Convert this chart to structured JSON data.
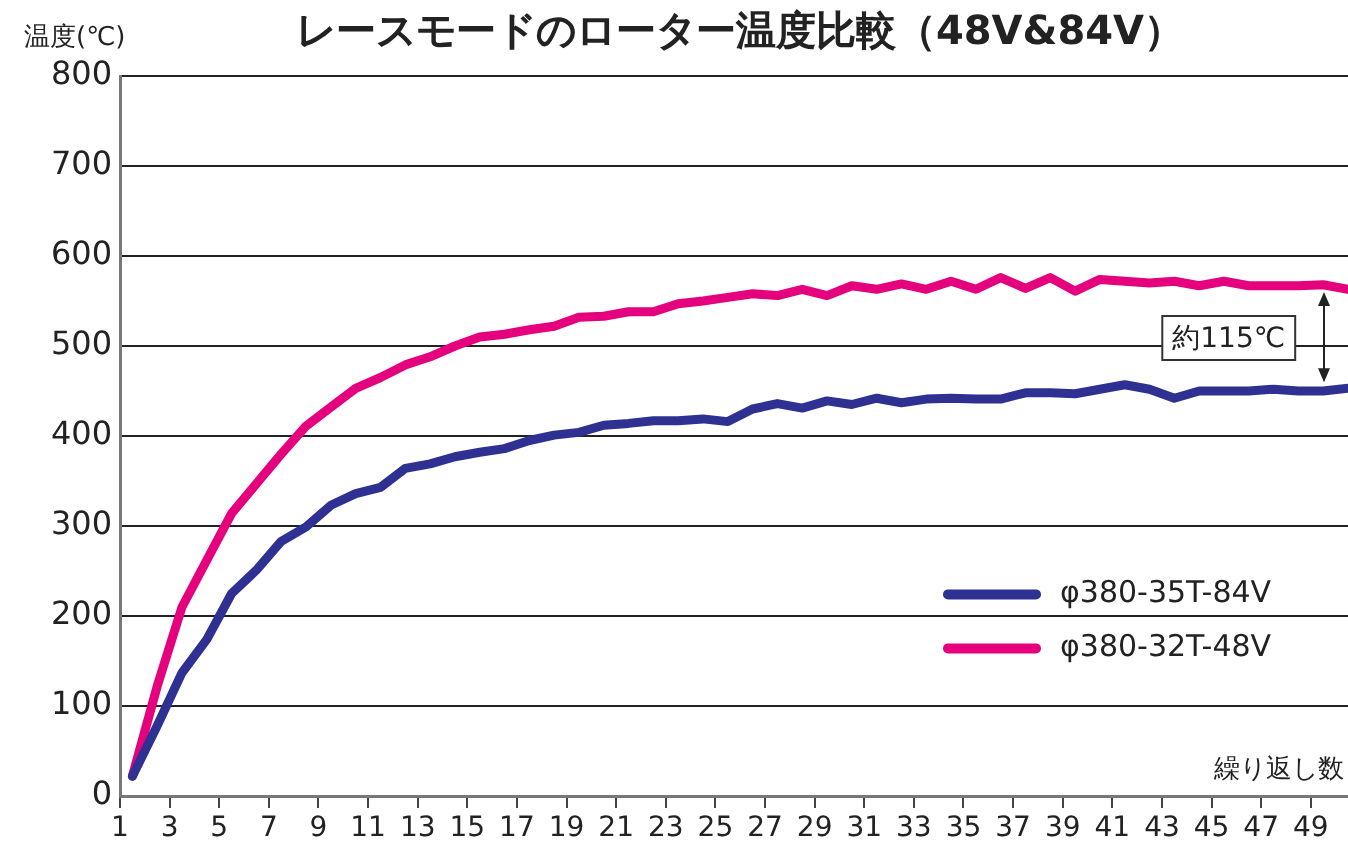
{
  "chart_data": {
    "type": "line",
    "title": "レースモードのローター温度比較（48V&84V）",
    "ylabel": "温度(℃)",
    "xlabel": "繰り返し数",
    "x": [
      1.5,
      2.5,
      3.5,
      4.5,
      5.5,
      6.5,
      7.5,
      8.5,
      9.5,
      10.5,
      11.5,
      12.5,
      13.5,
      14.5,
      15.5,
      16.5,
      17.5,
      18.5,
      19.5,
      20.5,
      21.5,
      22.5,
      23.5,
      24.5,
      25.5,
      26.5,
      27.5,
      28.5,
      29.5,
      30.5,
      31.5,
      32.5,
      33.5,
      34.5,
      35.5,
      36.5,
      37.5,
      38.5,
      39.5,
      40.5,
      41.5,
      42.5,
      43.5,
      44.5,
      45.5,
      46.5,
      47.5,
      48.5,
      49.5,
      50.5
    ],
    "series": [
      {
        "name": "φ380-35T-84V",
        "color": "#2e3192",
        "values": [
          22,
          78,
          137,
          174,
          225,
          251,
          283,
          299,
          323,
          336,
          343,
          364,
          369,
          377,
          382,
          386,
          395,
          401,
          404,
          412,
          414,
          417,
          417,
          419,
          416,
          430,
          436,
          431,
          439,
          435,
          442,
          437,
          441,
          442,
          441,
          441,
          448,
          448,
          447,
          452,
          457,
          452,
          442,
          450,
          450,
          450,
          452,
          450,
          450,
          453
        ]
      },
      {
        "name": "φ380-32T-48V",
        "color": "#e5007e",
        "values": [
          22,
          122,
          210,
          262,
          314,
          347,
          380,
          411,
          432,
          453,
          465,
          479,
          488,
          500,
          510,
          513,
          518,
          522,
          532,
          533,
          538,
          538,
          547,
          550,
          554,
          558,
          556,
          563,
          556,
          567,
          563,
          569,
          563,
          572,
          563,
          576,
          564,
          576,
          561,
          574,
          572,
          570,
          572,
          567,
          572,
          567,
          567,
          567,
          568,
          563
        ]
      }
    ],
    "xlim": [
      1,
      50.5
    ],
    "xticks": [
      1,
      3,
      5,
      7,
      9,
      11,
      13,
      15,
      17,
      19,
      21,
      23,
      25,
      27,
      29,
      31,
      33,
      35,
      37,
      39,
      41,
      43,
      45,
      47,
      49
    ],
    "ylim": [
      0,
      800
    ],
    "yticks": [
      0,
      100,
      200,
      300,
      400,
      500,
      600,
      700,
      800
    ],
    "grid": "y",
    "legend": "right",
    "line_style": "solid",
    "marker": "none",
    "annotations": [
      "約115℃"
    ]
  }
}
